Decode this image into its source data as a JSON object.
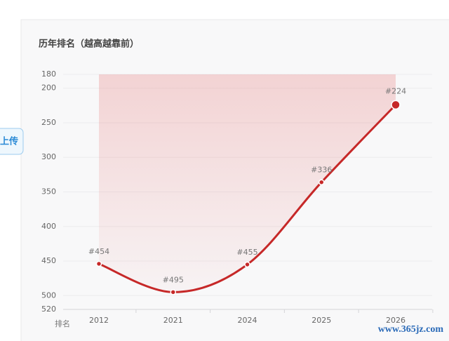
{
  "chart_data": {
    "type": "line",
    "title": "历年排名（越高越靠前）",
    "y_label": "排名",
    "categories": [
      "2012",
      "2021",
      "2024",
      "2025",
      "2026"
    ],
    "series": [
      {
        "name": "排名",
        "color": "#c62828",
        "values": [
          454,
          495,
          455,
          336,
          224
        ],
        "value_labels": [
          "#454",
          "#495",
          "#455",
          "#336",
          "#224"
        ]
      }
    ],
    "ylim": [
      180,
      520
    ],
    "yticks": [
      180,
      200,
      250,
      300,
      350,
      400,
      450,
      500,
      520
    ],
    "y_inverted": true,
    "grid": true
  },
  "ui": {
    "button": "上传",
    "watermark": "www.365jz.com"
  }
}
